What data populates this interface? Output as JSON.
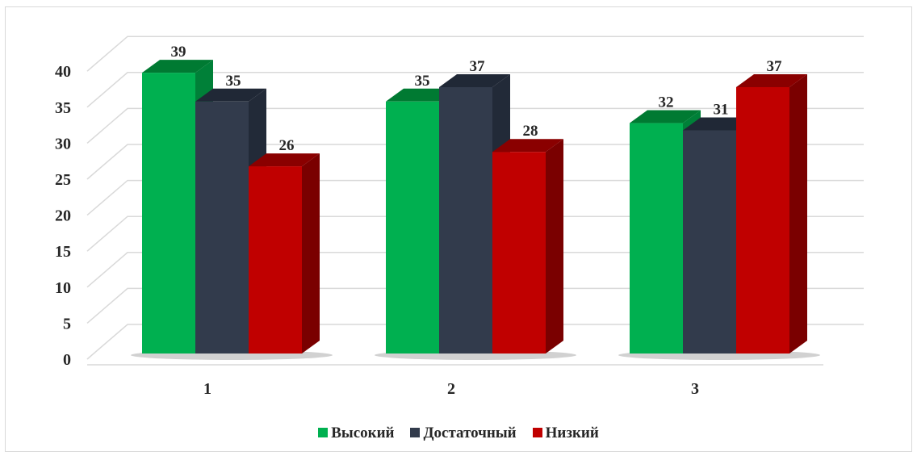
{
  "chart_data": {
    "type": "bar",
    "categories": [
      "1",
      "2",
      "3"
    ],
    "series": [
      {
        "name": "Высокий",
        "values": [
          39,
          35,
          32
        ],
        "color": "#00b050",
        "side": "#008038",
        "top": "#007a32"
      },
      {
        "name": "Достаточный",
        "values": [
          35,
          37,
          31
        ],
        "color": "#323b4c",
        "side": "#222a38",
        "top": "#202836"
      },
      {
        "name": "Низкий",
        "values": [
          26,
          28,
          37
        ],
        "color": "#c00000",
        "side": "#7a0000",
        "top": "#8a0000"
      }
    ],
    "title": "",
    "xlabel": "",
    "ylabel": "",
    "ylim": [
      0,
      40
    ],
    "yticks": [
      "0",
      "5",
      "10",
      "15",
      "20",
      "25",
      "30",
      "35",
      "40"
    ],
    "grid": true,
    "legend": "bottom",
    "style": "3d-clustered-column"
  }
}
